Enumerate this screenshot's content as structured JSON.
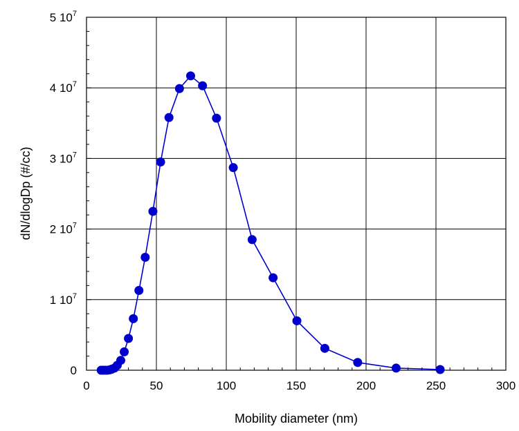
{
  "chart_data": {
    "type": "line",
    "title": "",
    "xlabel": "Mobility diameter (nm)",
    "ylabel": "dN/dlogDp (#/cc)",
    "xlim": [
      0,
      300
    ],
    "ylim": [
      0,
      50000000
    ],
    "x_ticks": [
      0,
      50,
      100,
      150,
      200,
      250,
      300
    ],
    "x_tick_labels": [
      "0",
      "50",
      "100",
      "150",
      "200",
      "250",
      "300"
    ],
    "y_ticks": [
      {
        "value": 0,
        "mantissa": "0",
        "exponent": ""
      },
      {
        "value": 10000000,
        "mantissa": "1 10",
        "exponent": "7"
      },
      {
        "value": 20000000,
        "mantissa": "2 10",
        "exponent": "7"
      },
      {
        "value": 30000000,
        "mantissa": "3 10",
        "exponent": "7"
      },
      {
        "value": 40000000,
        "mantissa": "4 10",
        "exponent": "7"
      },
      {
        "value": 50000000,
        "mantissa": "5 10",
        "exponent": "7"
      }
    ],
    "grid": true,
    "series_color": "#0000cc",
    "series": [
      {
        "marker": "filled-circle",
        "x": [
          10.5,
          12,
          13.5,
          15,
          16.5,
          18,
          20,
          22,
          24.5,
          27,
          30,
          33.5,
          37.5,
          42,
          47.5,
          53,
          59,
          66.5,
          74.5,
          83,
          93,
          105,
          118.5,
          133.5,
          150.5,
          170.5,
          194,
          221.5,
          253
        ],
        "y": [
          0,
          0,
          0,
          0,
          50000,
          150000,
          300000,
          700000,
          1400000,
          2600000,
          4500000,
          7300000,
          11300000,
          16000000,
          22500000,
          29500000,
          35800000,
          39900000,
          41700000,
          40300000,
          35700000,
          28700000,
          18500000,
          13100000,
          7000000,
          3100000,
          1100000,
          300000,
          100000
        ]
      }
    ]
  }
}
